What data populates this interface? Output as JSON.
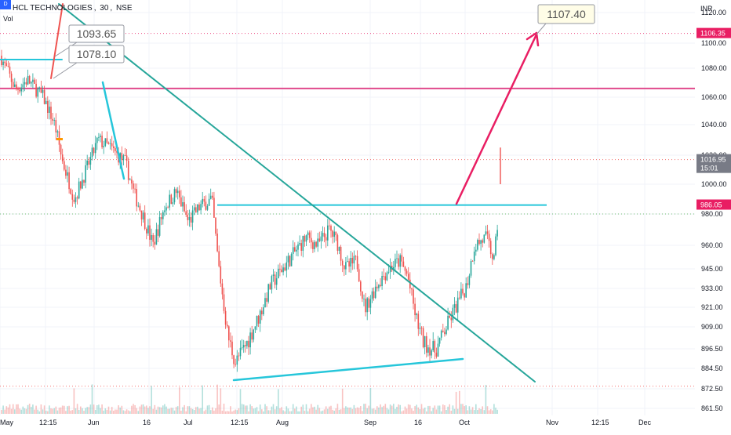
{
  "header": {
    "badge": "D",
    "symbol": "HCL TECHNOLOGIES",
    "interval": "30",
    "exchange": "NSE",
    "volume_label": "Vol"
  },
  "chart_data": {
    "type": "candlestick",
    "title": "HCL TECHNOLOGIES, 30, NSE",
    "currency": "INR",
    "y_ticks": [
      1120,
      1100,
      1080,
      1060,
      1040,
      1020,
      1000,
      980,
      960,
      945,
      933,
      921,
      909,
      896.5,
      884.5,
      872.5,
      861.5
    ],
    "y_tick_labels": [
      "1120.00",
      "1100.00",
      "1080.00",
      "1060.00",
      "1040.00",
      "1020.00",
      "1000.00",
      "980.00",
      "960.00",
      "945.00",
      "933.00",
      "921.00",
      "909.00",
      "896.50",
      "884.50",
      "872.50",
      "861.50"
    ],
    "x_labels": [
      "May",
      "12:15",
      "Jun",
      "16",
      "Jul",
      "12:15",
      "Aug",
      "Sep",
      "16",
      "Oct",
      "Nov",
      "12:15",
      "Dec"
    ],
    "price_labels": [
      {
        "value": 1106.35,
        "text": "1106.35",
        "color": "#e91e63"
      },
      {
        "value": 1016.95,
        "text": "1016.95",
        "sub": "15:01",
        "color": "#787b86"
      },
      {
        "value": 986.05,
        "text": "986.05",
        "color": "#e91e63"
      }
    ],
    "horizontal_levels": [
      {
        "value": 1066,
        "color": "#e04a8c",
        "style": "solid"
      },
      {
        "value": 986,
        "color": "#26c6da",
        "style": "solid"
      },
      {
        "value": 1106.35,
        "color": "#e91e63",
        "style": "dotted"
      },
      {
        "value": 1016.95,
        "color": "#ef5350",
        "style": "dotted"
      },
      {
        "value": 980,
        "color": "#4caf50",
        "style": "dotted"
      },
      {
        "value": 874,
        "color": "#ef5350",
        "style": "dotted"
      }
    ],
    "callouts": [
      {
        "text": "1093.65",
        "value": 1093.65
      },
      {
        "text": "1078.10",
        "value": 1078.1
      },
      {
        "text": "1107.40",
        "value": 1107.4
      }
    ],
    "trendlines": [
      {
        "name": "falling-trendline",
        "color": "#26a69a",
        "from": {
          "x": "May",
          "y": 1150
        },
        "to": {
          "x": "Nov",
          "y": 878
        }
      },
      {
        "name": "rising-support",
        "color": "#26c6da",
        "from": {
          "x": "Jul",
          "y": 878
        },
        "to": {
          "x": "Oct",
          "y": 890
        }
      },
      {
        "name": "breakout-resistance",
        "color": "#26c6da",
        "from": {
          "x": "Jul",
          "y": 986
        },
        "to": {
          "x": "Oct",
          "y": 986
        }
      },
      {
        "name": "target-arrow",
        "color": "#e91e63",
        "from": {
          "x": "Oct",
          "y": 986
        },
        "to": {
          "x": "Oct",
          "y": 1106
        }
      },
      {
        "name": "top-arrow",
        "color": "#ef5350",
        "from": {
          "x": "May",
          "y": 1090
        },
        "to": {
          "x": "May",
          "y": 1140
        }
      }
    ],
    "grid": true
  }
}
